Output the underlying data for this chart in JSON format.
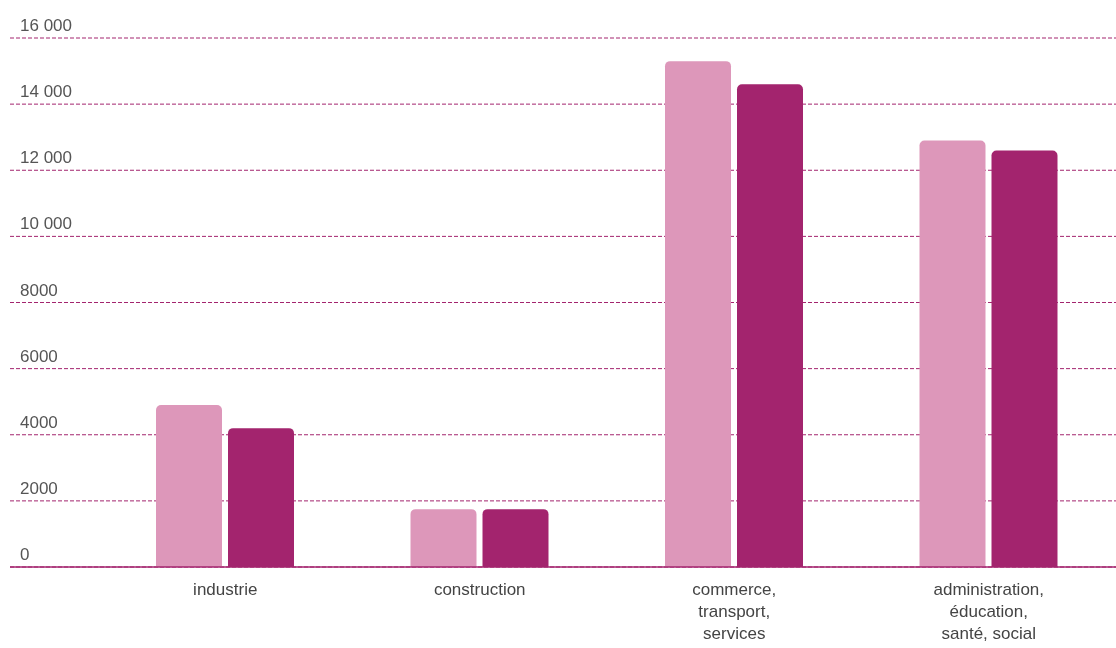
{
  "chart_data": {
    "type": "bar",
    "categories": [
      "industrie",
      "construction",
      "commerce, transport, services",
      "administration, éducation, santé, social"
    ],
    "series": [
      {
        "color": "#dd97ba",
        "values": [
          4900,
          1750,
          15300,
          12900
        ]
      },
      {
        "color": "#a3246e",
        "values": [
          4200,
          1750,
          14600,
          12600
        ]
      }
    ],
    "ylim": [
      0,
      16000
    ],
    "yticks": [
      0,
      2000,
      4000,
      6000,
      8000,
      {
        "value": 10000,
        "label": "10 000"
      },
      {
        "value": 12000,
        "label": "12 000"
      },
      {
        "value": 14000,
        "label": "14 000"
      },
      {
        "value": 16000,
        "label": "16 000"
      }
    ],
    "grid": "y",
    "legend": false
  }
}
